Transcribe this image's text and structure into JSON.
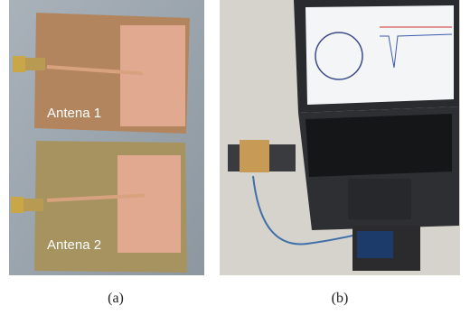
{
  "panel_a": {
    "labels": [
      "Antena 1",
      "Antena 2"
    ],
    "caption": "(a)"
  },
  "panel_b": {
    "caption": "(b)"
  }
}
